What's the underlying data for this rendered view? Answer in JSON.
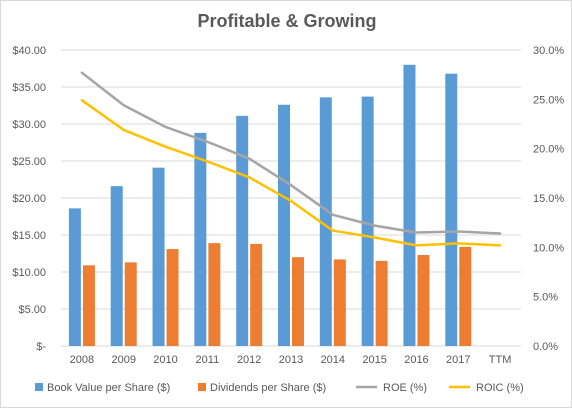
{
  "chart_data": {
    "type": "bar",
    "title": "Profitable & Growing",
    "categories": [
      "2008",
      "2009",
      "2010",
      "2011",
      "2012",
      "2013",
      "2014",
      "2015",
      "2016",
      "2017",
      "TTM"
    ],
    "y_left": {
      "ylim": [
        0,
        40
      ],
      "ticks": [
        0,
        5,
        10,
        15,
        20,
        25,
        30,
        35,
        40
      ],
      "tick_labels": [
        "$-",
        "$5.00",
        "$10.00",
        "$15.00",
        "$20.00",
        "$25.00",
        "$30.00",
        "$35.00",
        "$40.00"
      ]
    },
    "y_right": {
      "ylim": [
        0,
        30
      ],
      "ticks": [
        0,
        5,
        10,
        15,
        20,
        25,
        30
      ],
      "tick_labels": [
        "0.0%",
        "5.0%",
        "10.0%",
        "15.0%",
        "20.0%",
        "25.0%",
        "30.0%"
      ]
    },
    "grid": true,
    "legend_position": "bottom",
    "series": [
      {
        "name": "Book Value per Share ($)",
        "kind": "bar",
        "axis": "left",
        "color": "#5B9BD5",
        "values": [
          18.6,
          21.6,
          24.1,
          28.8,
          31.1,
          32.6,
          33.6,
          33.7,
          38.0,
          36.8,
          null
        ]
      },
      {
        "name": "Dividends per Share ($)",
        "kind": "bar",
        "axis": "left",
        "color": "#ED7D31",
        "values": [
          10.9,
          11.3,
          13.1,
          13.9,
          13.8,
          12.0,
          11.7,
          11.5,
          12.3,
          13.4,
          null
        ]
      },
      {
        "name": "ROE (%)",
        "kind": "line",
        "axis": "right",
        "color": "#A5A5A5",
        "values": [
          27.7,
          24.4,
          22.2,
          20.7,
          19.0,
          16.3,
          13.3,
          12.2,
          11.5,
          11.6,
          11.4
        ]
      },
      {
        "name": "ROIC (%)",
        "kind": "line",
        "axis": "right",
        "color": "#FFC000",
        "values": [
          24.9,
          21.9,
          20.2,
          18.7,
          17.1,
          14.7,
          11.7,
          11.0,
          10.2,
          10.4,
          10.2
        ]
      }
    ]
  }
}
